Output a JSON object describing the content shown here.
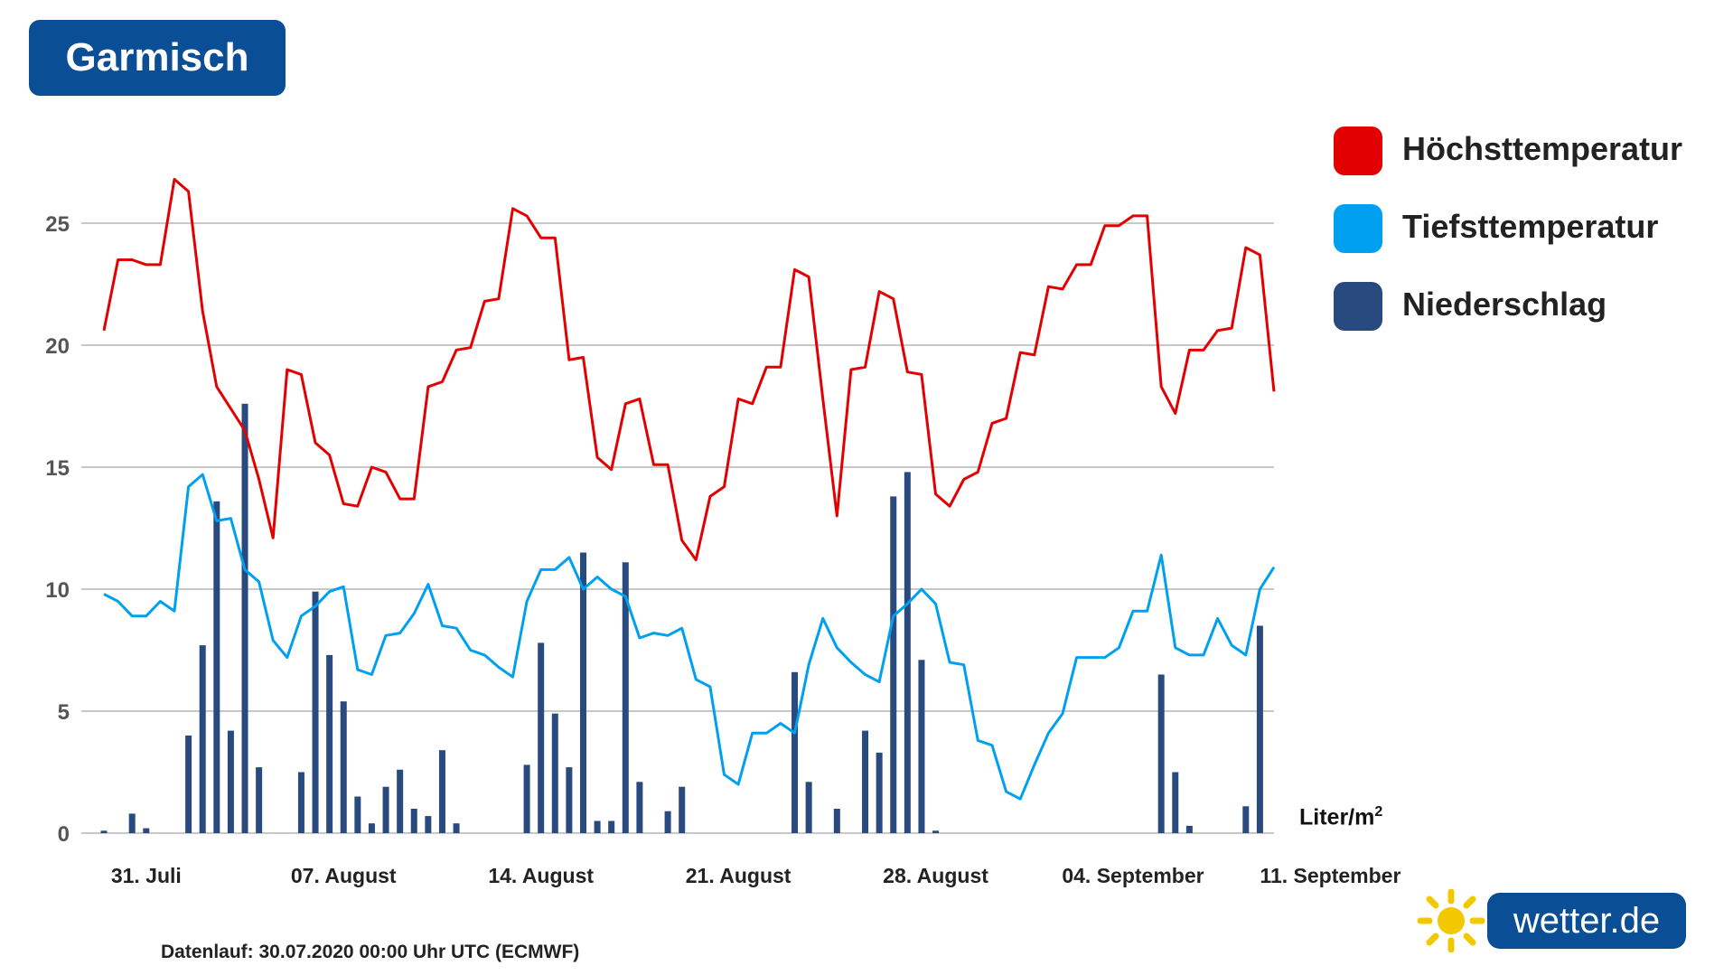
{
  "title": "Garmisch",
  "unit_label": "Liter/m",
  "unit_superscript": "2",
  "footer_note": "Datenlauf: 30.07.2020 00:00 Uhr UTC (ECMWF)",
  "brand": {
    "name": "wetter.de"
  },
  "colors": {
    "title_bg": "#0a4f96",
    "max_temp": "#e30000",
    "min_temp": "#00a0f0",
    "precip": "#284a7e",
    "grid": "#b5b5b5",
    "logo_sun": "#f2c800"
  },
  "chart_data": {
    "type": "line",
    "x_labels": [
      "31. Juli",
      "07. August",
      "14. August",
      "21. August",
      "28. August",
      "04. September",
      "11. September"
    ],
    "x_label_index": [
      3,
      17,
      31,
      45,
      59,
      73,
      87
    ],
    "ylim": [
      0,
      27.5
    ],
    "yticks": [
      0,
      5,
      10,
      15,
      20,
      25
    ],
    "grid": true,
    "legend_placement": "right",
    "series": [
      {
        "name": "Höchsttemperatur",
        "kind": "line",
        "values": [
          20.6,
          23.5,
          23.5,
          23.3,
          23.3,
          26.8,
          26.3,
          21.4,
          18.3,
          17.4,
          16.5,
          14.5,
          12.1,
          19,
          18.8,
          16,
          15.5,
          13.5,
          13.4,
          15,
          14.8,
          13.7,
          13.7,
          18.3,
          18.5,
          19.8,
          19.9,
          21.8,
          21.9,
          25.6,
          25.3,
          24.4,
          24.4,
          19.4,
          19.5,
          15.4,
          14.9,
          17.6,
          17.8,
          15.1,
          15.1,
          12,
          11.2,
          13.8,
          14.2,
          17.8,
          17.6,
          19.1,
          19.1,
          23.1,
          22.8,
          17.8,
          13,
          19,
          19.1,
          22.2,
          21.9,
          18.9,
          18.8,
          13.9,
          13.4,
          14.5,
          14.8,
          16.8,
          17,
          19.7,
          19.6,
          22.4,
          22.3,
          23.3,
          23.3,
          24.9,
          24.9,
          25.3,
          25.3,
          18.3,
          17.2,
          19.8,
          19.8,
          20.6,
          20.7,
          24,
          23.7,
          18.1
        ]
      },
      {
        "name": "Tiefsttemperatur",
        "kind": "line",
        "values": [
          9.8,
          9.5,
          8.9,
          8.9,
          9.5,
          9.1,
          14.2,
          14.7,
          12.8,
          12.9,
          10.8,
          10.3,
          7.9,
          7.2,
          8.9,
          9.3,
          9.9,
          10.1,
          6.7,
          6.5,
          8.1,
          8.2,
          9,
          10.2,
          8.5,
          8.4,
          7.5,
          7.3,
          6.8,
          6.4,
          9.5,
          10.8,
          10.8,
          11.3,
          10,
          10.5,
          10,
          9.7,
          8,
          8.2,
          8.1,
          8.4,
          6.3,
          6,
          2.4,
          2,
          4.1,
          4.1,
          4.5,
          4.1,
          6.9,
          8.8,
          7.6,
          7,
          6.5,
          6.2,
          8.9,
          9.4,
          10,
          9.4,
          7,
          6.9,
          3.8,
          3.6,
          1.7,
          1.4,
          2.8,
          4.1,
          4.9,
          7.2,
          7.2,
          7.2,
          7.6,
          9.1,
          9.1,
          11.4,
          7.6,
          7.3,
          7.3,
          8.8,
          7.7,
          7.3,
          10,
          10.9
        ]
      },
      {
        "name": "Niederschlag",
        "kind": "bar",
        "bar_index": [
          0,
          2,
          3,
          6,
          7,
          8,
          9,
          10,
          11,
          14,
          15,
          16,
          17,
          18,
          19,
          20,
          21,
          22,
          23,
          24,
          25,
          30,
          31,
          32,
          33,
          34,
          35,
          36,
          37,
          38,
          40,
          41,
          49,
          50,
          52,
          54,
          55,
          56,
          57,
          58,
          59,
          75,
          76,
          77,
          81,
          82
        ],
        "values": [
          0.1,
          0.8,
          0.2,
          4,
          7.7,
          13.6,
          4.2,
          17.6,
          2.7,
          2.5,
          9.9,
          7.3,
          5.4,
          1.5,
          0.4,
          1.9,
          2.6,
          1,
          0.7,
          3.4,
          0.4,
          2.8,
          7.8,
          4.9,
          2.7,
          11.5,
          0.5,
          0.5,
          11.1,
          2.1,
          0.9,
          1.9,
          6.6,
          2.1,
          1,
          4.2,
          3.3,
          13.8,
          14.8,
          7.1,
          0.1,
          6.5,
          2.5,
          0.3,
          1.1,
          8.5
        ]
      }
    ]
  }
}
